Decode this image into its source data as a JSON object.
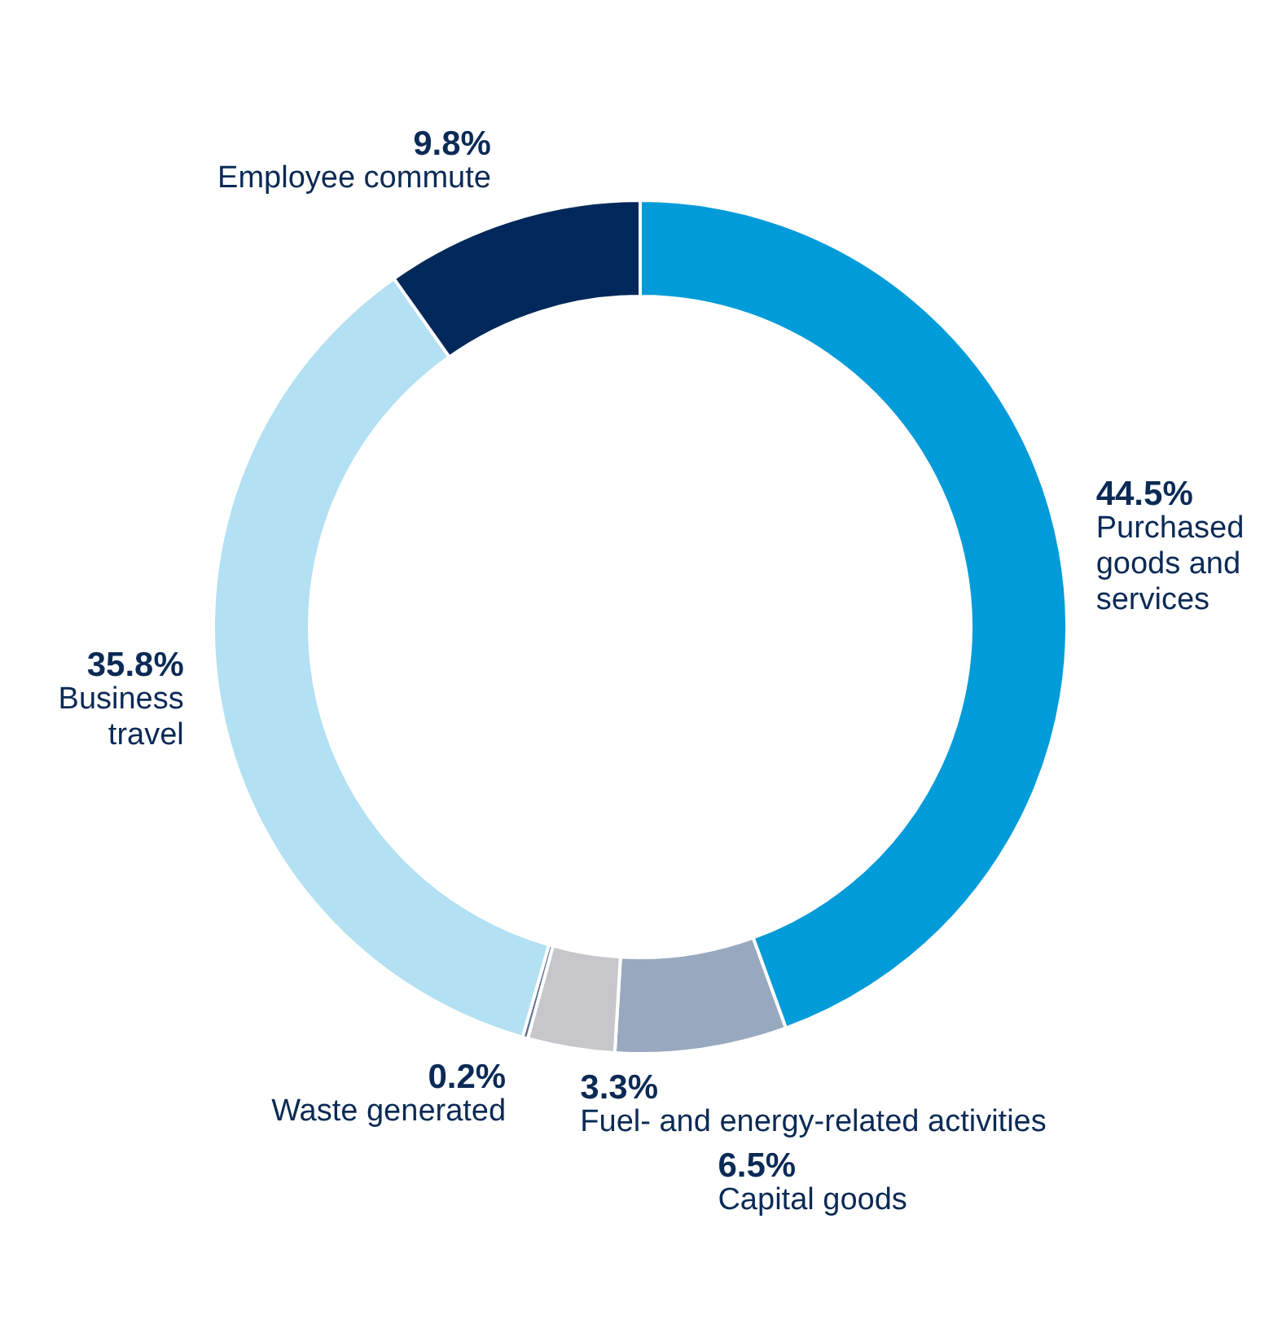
{
  "chart_data": {
    "type": "donut",
    "categories": [
      "Purchased goods and services",
      "Capital goods",
      "Fuel- and energy-related activities",
      "Waste generated",
      "Business travel",
      "Employee commute"
    ],
    "values": [
      44.5,
      6.5,
      3.3,
      0.2,
      35.8,
      9.8
    ],
    "value_labels": [
      "44.5%",
      "6.5%",
      "3.3%",
      "0.2%",
      "35.8%",
      "9.8%"
    ],
    "colors": [
      "#009bd9",
      "#98a9bf",
      "#c6c6cb",
      "#5a6e8c",
      "#b3e0f3",
      "#00285a"
    ]
  }
}
